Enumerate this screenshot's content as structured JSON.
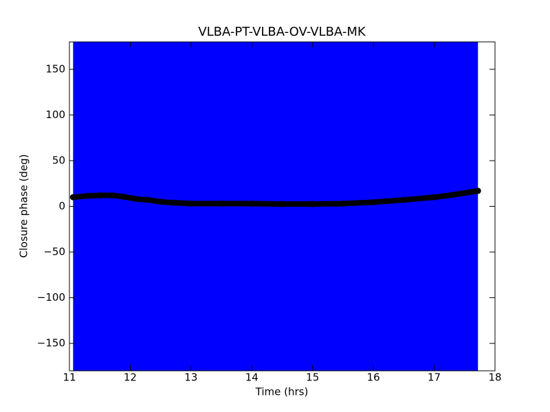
{
  "chart_data": {
    "type": "scatter",
    "title": "VLBA-PT-VLBA-OV-VLBA-MK",
    "x_label": "Time (hrs)",
    "y_label": "Closure phase (deg)",
    "xlim": [
      11,
      18
    ],
    "ylim": [
      -180,
      180
    ],
    "xticks": [
      11,
      12,
      13,
      14,
      15,
      16,
      17,
      18
    ],
    "yticks": [
      {
        "value": -150,
        "label": "−150"
      },
      {
        "value": -100,
        "label": "−100"
      },
      {
        "value": -50,
        "label": "−50"
      },
      0,
      50,
      100,
      150
    ],
    "band": {
      "x": [
        11.06,
        17.72
      ],
      "y": [
        -180,
        180
      ],
      "color": "#0000ff"
    },
    "series": [
      {
        "color": "#000000",
        "x": [
          11.06,
          11.3,
          11.5,
          11.7,
          11.9,
          12.1,
          12.3,
          12.5,
          12.7,
          13.0,
          13.5,
          14.0,
          14.5,
          15.0,
          15.5,
          16.0,
          16.5,
          17.0,
          17.3,
          17.72
        ],
        "values": [
          10,
          11.5,
          12,
          12,
          10.5,
          8,
          7,
          5,
          4,
          3,
          3,
          3,
          2.5,
          2.5,
          3,
          4.5,
          7,
          10,
          12.5,
          17
        ]
      }
    ]
  }
}
